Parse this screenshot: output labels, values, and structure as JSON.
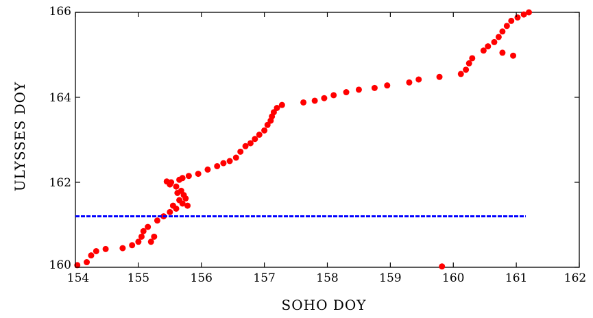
{
  "chart_data": {
    "type": "scatter",
    "title": "",
    "xlabel": "SOHO DOY",
    "ylabel": "ULYSSES DOY",
    "xlim": [
      154,
      162
    ],
    "ylim": [
      160,
      166
    ],
    "xticks": [
      154,
      155,
      156,
      157,
      158,
      159,
      160,
      161,
      162
    ],
    "yticks": [
      160,
      162,
      164,
      166
    ],
    "grid": false,
    "legend": "none",
    "colors": {
      "series_points": "#ff0000",
      "reference_line": "#0000ff",
      "axes": "#000000"
    },
    "series": [
      {
        "values": [
          [
            154.03,
            160.05
          ],
          [
            154.18,
            160.12
          ],
          [
            154.25,
            160.28
          ],
          [
            154.33,
            160.38
          ],
          [
            154.48,
            160.43
          ],
          [
            154.75,
            160.45
          ],
          [
            154.9,
            160.52
          ],
          [
            155.0,
            160.6
          ],
          [
            155.05,
            160.72
          ],
          [
            155.08,
            160.85
          ],
          [
            155.15,
            160.95
          ],
          [
            155.2,
            160.6
          ],
          [
            155.25,
            160.72
          ],
          [
            155.3,
            161.1
          ],
          [
            155.4,
            161.2
          ],
          [
            155.5,
            161.3
          ],
          [
            155.55,
            161.45
          ],
          [
            155.6,
            161.38
          ],
          [
            155.65,
            161.58
          ],
          [
            155.7,
            161.5
          ],
          [
            155.75,
            161.62
          ],
          [
            155.78,
            161.45
          ],
          [
            155.72,
            161.7
          ],
          [
            155.68,
            161.8
          ],
          [
            155.62,
            161.75
          ],
          [
            155.6,
            161.9
          ],
          [
            155.5,
            161.95
          ],
          [
            155.45,
            162.02
          ],
          [
            155.52,
            162.0
          ],
          [
            155.65,
            162.06
          ],
          [
            155.7,
            162.1
          ],
          [
            155.8,
            162.15
          ],
          [
            155.95,
            162.2
          ],
          [
            156.1,
            162.3
          ],
          [
            156.25,
            162.38
          ],
          [
            156.35,
            162.45
          ],
          [
            156.45,
            162.5
          ],
          [
            156.55,
            162.58
          ],
          [
            156.62,
            162.72
          ],
          [
            156.7,
            162.85
          ],
          [
            156.78,
            162.92
          ],
          [
            156.85,
            163.02
          ],
          [
            156.92,
            163.12
          ],
          [
            157.0,
            163.22
          ],
          [
            157.05,
            163.35
          ],
          [
            157.1,
            163.45
          ],
          [
            157.12,
            163.55
          ],
          [
            157.15,
            163.65
          ],
          [
            157.2,
            163.75
          ],
          [
            157.28,
            163.82
          ],
          [
            157.62,
            163.88
          ],
          [
            157.8,
            163.92
          ],
          [
            157.95,
            163.98
          ],
          [
            158.1,
            164.05
          ],
          [
            158.3,
            164.12
          ],
          [
            158.5,
            164.18
          ],
          [
            158.75,
            164.22
          ],
          [
            158.95,
            164.28
          ],
          [
            159.3,
            164.35
          ],
          [
            159.45,
            164.42
          ],
          [
            159.78,
            164.48
          ],
          [
            160.12,
            164.55
          ],
          [
            160.2,
            164.65
          ],
          [
            160.25,
            164.8
          ],
          [
            160.3,
            164.92
          ],
          [
            160.48,
            165.1
          ],
          [
            160.55,
            165.2
          ],
          [
            160.65,
            165.3
          ],
          [
            160.72,
            165.42
          ],
          [
            160.78,
            165.55
          ],
          [
            160.85,
            165.68
          ],
          [
            160.92,
            165.8
          ],
          [
            161.02,
            165.88
          ],
          [
            161.12,
            165.95
          ],
          [
            161.2,
            166.0
          ],
          [
            160.78,
            165.05
          ],
          [
            160.95,
            164.98
          ],
          [
            159.82,
            160.02
          ]
        ]
      },
      {
        "type": "line",
        "style": "dashed",
        "values": [
          [
            154.0,
            161.2
          ],
          [
            161.15,
            161.2
          ]
        ]
      }
    ]
  }
}
